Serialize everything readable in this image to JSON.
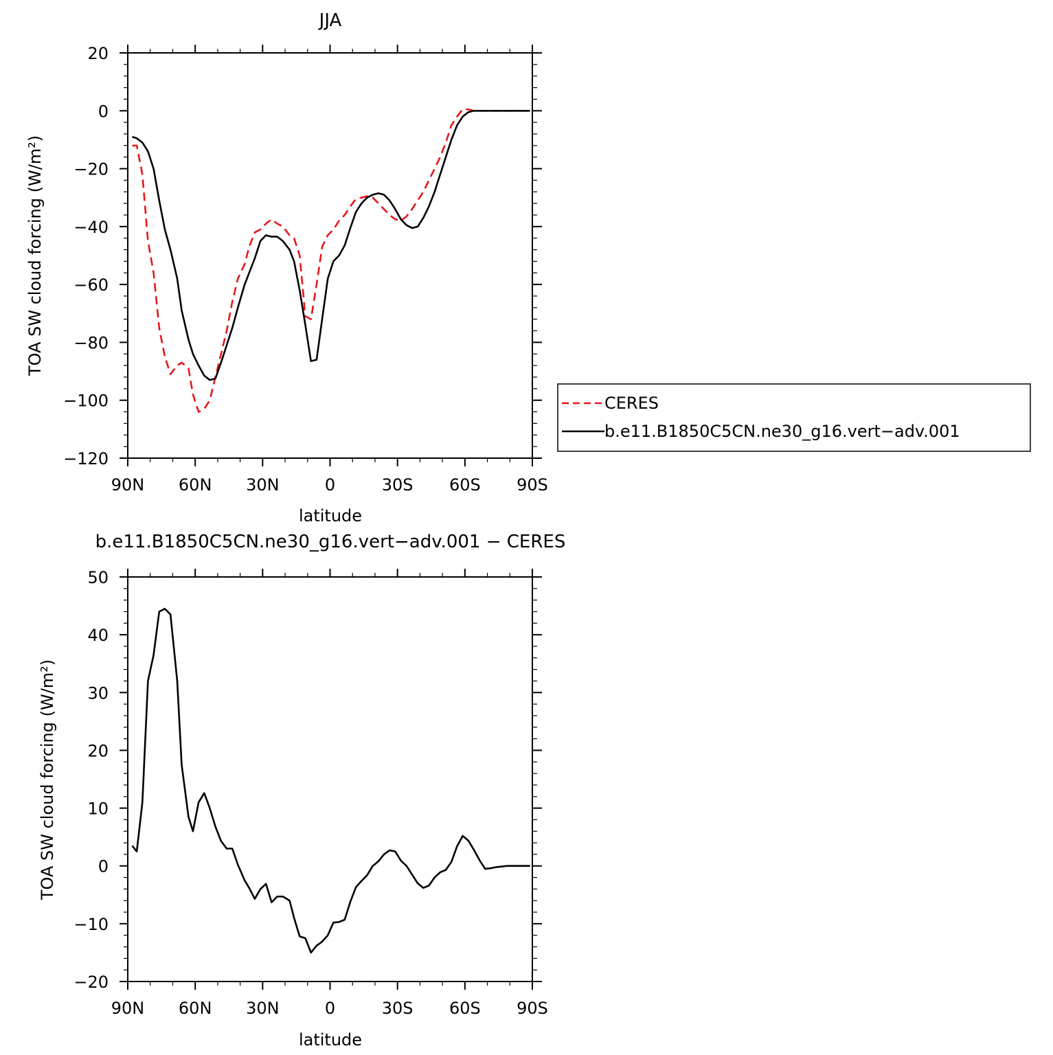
{
  "colors": {
    "ceres": "#e8161b",
    "model": "#000000",
    "axes": "#000000",
    "background": "#ffffff"
  },
  "chart_data": [
    {
      "type": "line",
      "title": "JJA",
      "xlabel": "latitude",
      "ylabel": "TOA SW cloud forcing (W/m²)",
      "xlim": [
        90,
        -90
      ],
      "ylim": [
        -120,
        20
      ],
      "x_ticks": [
        90,
        60,
        30,
        0,
        -30,
        -60,
        -90
      ],
      "x_tick_labels": [
        "90N",
        "60N",
        "30N",
        "0",
        "30S",
        "60S",
        "90S"
      ],
      "y_ticks": [
        -120,
        -100,
        -80,
        -60,
        -40,
        -20,
        0,
        20
      ],
      "y_tick_labels": [
        "−120",
        "−100",
        "−80",
        "−60",
        "−40",
        "−20",
        "0",
        "20"
      ],
      "grid": false,
      "legend_position": "right",
      "series": [
        {
          "name": "CERES",
          "style": "dashed",
          "color": "#e8161b",
          "x": [
            88,
            86,
            83.5,
            81,
            78.5,
            76,
            73.5,
            71,
            68,
            66,
            63,
            61,
            58.5,
            56,
            53.5,
            51,
            48.5,
            46,
            43.5,
            41,
            38,
            36,
            33.5,
            31,
            28.5,
            26,
            23.5,
            21,
            18,
            16,
            13.5,
            11,
            8.5,
            6,
            3.5,
            1,
            -1.5,
            -4,
            -6.5,
            -9,
            -11.5,
            -14,
            -16.5,
            -19,
            -21.5,
            -24,
            -26.5,
            -29,
            -31.5,
            -34,
            -36.5,
            -39,
            -41.5,
            -44,
            -46.5,
            -49,
            -51.5,
            -54,
            -56.5,
            -59,
            -61.5,
            -64,
            -66.5,
            -69,
            -71.5,
            -74,
            -76.5,
            -79,
            -81.5,
            -84,
            -86.5,
            -89
          ],
          "y": [
            -12,
            -12,
            -22,
            -45,
            -56,
            -75,
            -85,
            -91,
            -88,
            -87,
            -89,
            -98,
            -104,
            -103,
            -100,
            -92,
            -84,
            -76,
            -66,
            -58,
            -53,
            -47,
            -42,
            -41,
            -39,
            -37.5,
            -39,
            -40,
            -43,
            -44,
            -50,
            -71,
            -72,
            -60,
            -47,
            -43,
            -41,
            -38,
            -36,
            -33,
            -30.5,
            -30,
            -29.5,
            -30,
            -32,
            -34,
            -36,
            -37.5,
            -38,
            -36.5,
            -34,
            -31,
            -28,
            -24,
            -20,
            -16,
            -11,
            -5,
            -2,
            0.5,
            0.5,
            0,
            0,
            0,
            0,
            0,
            0,
            0,
            0,
            0,
            0,
            0
          ]
        },
        {
          "name": "b.e11.B1850C5CN.ne30_g16.vert−adv.001",
          "style": "solid",
          "color": "#000000",
          "x": [
            88,
            86,
            83.5,
            81,
            78.5,
            76,
            73.5,
            71,
            68,
            66,
            63,
            61,
            58.5,
            56,
            53.5,
            51,
            48.5,
            46,
            43.5,
            41,
            38,
            36,
            33.5,
            31,
            28.5,
            26,
            23.5,
            21,
            18,
            16,
            13.5,
            11,
            8.5,
            6,
            3.5,
            1,
            -1.5,
            -4,
            -6.5,
            -9,
            -11.5,
            -14,
            -16.5,
            -19,
            -21.5,
            -24,
            -26.5,
            -29,
            -31.5,
            -34,
            -36.5,
            -39,
            -41.5,
            -44,
            -46.5,
            -49,
            -51.5,
            -54,
            -56.5,
            -59,
            -61.5,
            -64,
            -66.5,
            -69,
            -71.5,
            -74,
            -76.5,
            -79,
            -81.5,
            -84,
            -86.5,
            -89
          ],
          "y": [
            -9,
            -9.5,
            -11,
            -14,
            -20,
            -31,
            -41,
            -48,
            -58,
            -69,
            -79,
            -84,
            -88,
            -91.5,
            -93,
            -92.5,
            -87,
            -81,
            -75,
            -68,
            -60,
            -56,
            -51,
            -45,
            -43,
            -43.5,
            -43.5,
            -45,
            -48,
            -52,
            -62,
            -74,
            -86.5,
            -86,
            -72,
            -58,
            -52,
            -50,
            -46.5,
            -40.5,
            -35,
            -32,
            -30,
            -29,
            -28.5,
            -29,
            -31,
            -34,
            -37.5,
            -39.5,
            -40.5,
            -40,
            -37,
            -33,
            -28,
            -22,
            -16,
            -10,
            -5,
            -2,
            -0.5,
            0,
            0,
            0,
            0,
            0,
            0,
            0,
            0,
            0,
            0,
            0
          ]
        }
      ]
    },
    {
      "type": "line",
      "title": "b.e11.B1850C5CN.ne30_g16.vert−adv.001  −  CERES",
      "xlabel": "latitude",
      "ylabel": "TOA SW cloud forcing (W/m²)",
      "xlim": [
        90,
        -90
      ],
      "ylim": [
        -20,
        50
      ],
      "x_ticks": [
        90,
        60,
        30,
        0,
        -30,
        -60,
        -90
      ],
      "x_tick_labels": [
        "90N",
        "60N",
        "30N",
        "0",
        "30S",
        "60S",
        "90S"
      ],
      "y_ticks": [
        -20,
        -10,
        0,
        10,
        20,
        30,
        40,
        50
      ],
      "y_tick_labels": [
        "−20",
        "−10",
        "0",
        "10",
        "20",
        "30",
        "40",
        "50"
      ],
      "grid": false,
      "series": [
        {
          "style": "solid",
          "color": "#000000",
          "x": [
            88,
            86,
            83.5,
            81,
            78.5,
            76,
            73.5,
            71,
            68,
            66,
            63,
            61,
            58.5,
            56,
            53.5,
            51,
            48.5,
            46,
            43.5,
            41,
            38,
            36,
            33.5,
            31,
            28.5,
            26,
            23.5,
            21,
            18,
            16,
            13.5,
            11,
            8.5,
            6,
            3.5,
            1,
            -1.5,
            -4,
            -6.5,
            -9,
            -11.5,
            -14,
            -16.5,
            -19,
            -21.5,
            -24,
            -26.5,
            -29,
            -31.5,
            -34,
            -36.5,
            -39,
            -41.5,
            -44,
            -46.5,
            -49,
            -51.5,
            -54,
            -56.5,
            -59,
            -61.5,
            -64,
            -66.5,
            -69,
            -71.5,
            -74,
            -76.5,
            -79,
            -81.5,
            -84,
            -86.5,
            -89
          ],
          "y": [
            3.5,
            2.5,
            11,
            32,
            36.5,
            44,
            44.5,
            43.5,
            32,
            17.5,
            8.5,
            6,
            11,
            12.6,
            10,
            6.8,
            4.3,
            3,
            3,
            0.2,
            -2.5,
            -3.8,
            -5.7,
            -4,
            -3.1,
            -6.3,
            -5.3,
            -5.3,
            -6,
            -9,
            -12.2,
            -12.5,
            -15,
            -13.8,
            -13.1,
            -12,
            -9.8,
            -9.7,
            -9.3,
            -6.2,
            -3.7,
            -2.6,
            -1.6,
            0,
            0.8,
            2,
            2.7,
            2.5,
            0.9,
            0,
            -1.5,
            -3,
            -3.8,
            -3.4,
            -2,
            -1.1,
            -0.7,
            0.7,
            3.4,
            5.2,
            4.4,
            2.8,
            1,
            -0.5,
            -0.4,
            -0.2,
            -0.1,
            0,
            0,
            0,
            0,
            0
          ]
        }
      ]
    }
  ]
}
